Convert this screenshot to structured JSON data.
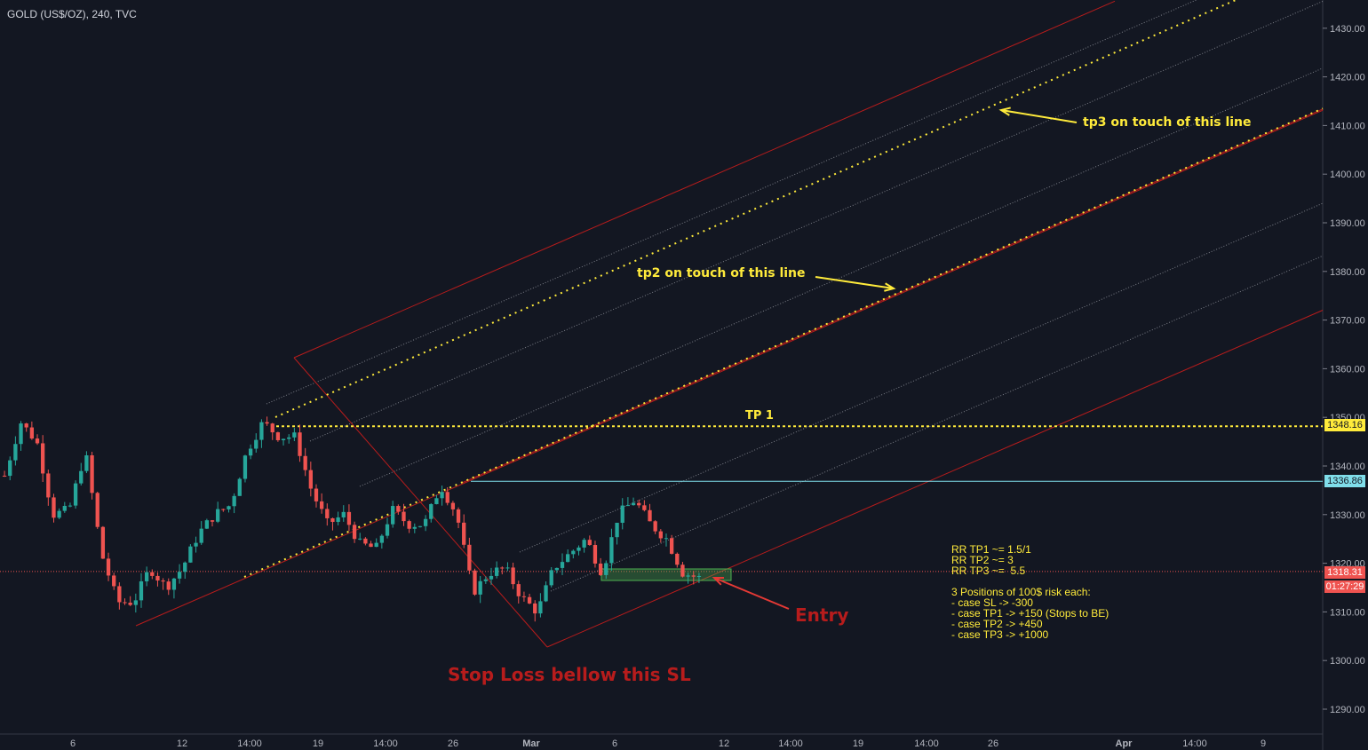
{
  "title": "GOLD (US$/OZ), 240, TVC",
  "chart_data": {
    "type": "candlestick",
    "ylim": [
      1282,
      1437
    ],
    "y_ticks": [
      1290,
      1300,
      1310,
      1320,
      1330,
      1340,
      1350,
      1360,
      1370,
      1380,
      1390,
      1400,
      1410,
      1420,
      1430
    ],
    "x_ticks": [
      "6",
      "12",
      "14:00",
      "19",
      "14:00",
      "26",
      "Mar",
      "6",
      "12",
      "14:00",
      "19",
      "14:00",
      "26",
      "Apr",
      "14:00",
      "9"
    ],
    "levels": {
      "tp1": 1348.16,
      "resistance": 1336.86,
      "current": 1318.31,
      "countdown": "01:27:29"
    },
    "annotations": {
      "tp1_label": "TP 1",
      "tp2_label": "tp2 on touch of this line",
      "tp3_label": "tp3 on touch of this line",
      "entry_label": "Entry",
      "sl_label": "Stop Loss bellow this SL"
    },
    "notes": [
      "RR TP1 ~= 1.5/1",
      "RR TP2 ~= 3",
      "RR TP3 ~=  5.5",
      "",
      "3 Positions of 100$ risk each:",
      "- case SL -> -300",
      "- case TP1 -> +150 (Stops to BE)",
      "- case TP2 -> +450",
      "- case TP3 -> +1000"
    ],
    "close_path": [
      1338,
      1349,
      1345,
      1330,
      1331,
      1343,
      1322,
      1312,
      1312,
      1319,
      1315,
      1319,
      1326,
      1330,
      1332,
      1343,
      1349,
      1346,
      1346,
      1335,
      1328,
      1330,
      1324,
      1323,
      1331,
      1328,
      1328,
      1336,
      1330,
      1314,
      1318,
      1319,
      1313,
      1310,
      1319,
      1322,
      1325,
      1318,
      1330,
      1333,
      1328,
      1325,
      1318,
      1317
    ]
  },
  "colors": {
    "up": "#26a69a",
    "down": "#ef5350",
    "channel": "#b71c1c",
    "fib": "#ffeb3b",
    "resistance": "#80deea",
    "grid_text": "#b2b5be"
  }
}
